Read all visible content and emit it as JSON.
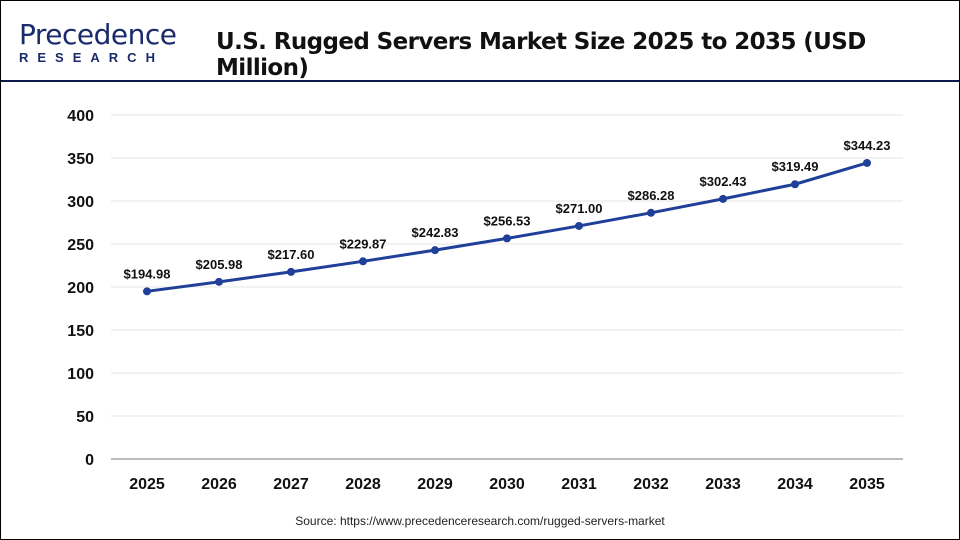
{
  "header": {
    "logo_top": "Precedence",
    "logo_bottom": "RESEARCH",
    "title": "U.S. Rugged Servers Market Size 2025 to 2035 (USD Million)"
  },
  "source": "Source: https://www.precedenceresearch.com/rugged-servers-market",
  "chart_data": {
    "type": "line",
    "title": "U.S. Rugged Servers Market Size 2025 to 2035 (USD Million)",
    "categories": [
      "2025",
      "2026",
      "2027",
      "2028",
      "2029",
      "2030",
      "2031",
      "2032",
      "2033",
      "2034",
      "2035"
    ],
    "values": [
      194.98,
      205.98,
      217.6,
      229.87,
      242.83,
      256.53,
      271.0,
      286.28,
      302.43,
      319.49,
      344.23
    ],
    "data_labels": [
      "$194.98",
      "$205.98",
      "$217.60",
      "$229.87",
      "$242.83",
      "$256.53",
      "$271.00",
      "$286.28",
      "$302.43",
      "$319.49",
      "$344.23"
    ],
    "yticks": [
      0,
      50,
      100,
      150,
      200,
      250,
      300,
      350,
      400
    ],
    "ylim": [
      0,
      400
    ],
    "grid": true,
    "line_color": "#1f3f99",
    "xlabel": "",
    "ylabel": ""
  }
}
